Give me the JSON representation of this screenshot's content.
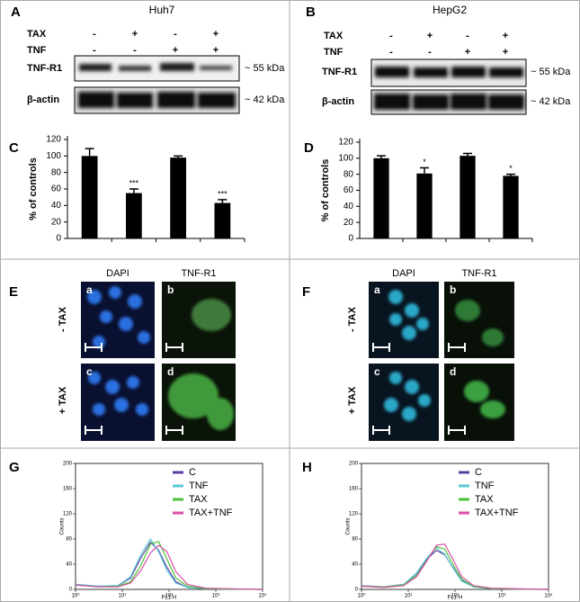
{
  "blots": [
    {
      "letter": "A",
      "title": "Huh7",
      "row_labels": [
        "TAX",
        "TNF"
      ],
      "rows": [
        [
          "-",
          "+",
          "-",
          "+"
        ],
        [
          "-",
          "-",
          "+",
          "+"
        ]
      ],
      "bands": [
        {
          "name": "TNF-R1",
          "size": "~ 55 kDa"
        },
        {
          "name": "β-actin",
          "size": "~ 42 kDa"
        }
      ]
    },
    {
      "letter": "B",
      "title": "HepG2",
      "row_labels": [
        "TAX",
        "TNF"
      ],
      "rows": [
        [
          "-",
          "+",
          "-",
          "+"
        ],
        [
          "-",
          "-",
          "+",
          "+"
        ]
      ],
      "bands": [
        {
          "name": "TNF-R1",
          "size": "~ 55 kDa"
        },
        {
          "name": "β-actin",
          "size": "~ 42 kDa"
        }
      ]
    }
  ],
  "microscopy": [
    {
      "letter": "E",
      "columns": [
        "DAPI",
        "TNF-R1"
      ],
      "rows": [
        "- TAX",
        "+ TAX"
      ],
      "tiles": [
        "a",
        "b",
        "c",
        "d"
      ]
    },
    {
      "letter": "F",
      "columns": [
        "DAPI",
        "TNF-R1"
      ],
      "rows": [
        "- TAX",
        "+ TAX"
      ],
      "tiles": [
        "a",
        "b",
        "c",
        "d"
      ]
    }
  ],
  "chart_data": [
    {
      "type": "bar",
      "letter": "C",
      "ylabel": "% of controls",
      "categories": [
        null,
        null,
        null,
        null
      ],
      "values": [
        100,
        55,
        98,
        43
      ],
      "errors": [
        9,
        5,
        2,
        4
      ],
      "significance": [
        null,
        "***",
        null,
        "***"
      ],
      "color": "#000000",
      "ylim": [
        0,
        120
      ],
      "yticks": [
        0,
        20,
        40,
        60,
        80,
        100,
        120
      ]
    },
    {
      "type": "bar",
      "letter": "D",
      "ylabel": "% of controls",
      "categories": [
        null,
        null,
        null,
        null
      ],
      "values": [
        100,
        81,
        103,
        78
      ],
      "errors": [
        3,
        7,
        3,
        2
      ],
      "significance": [
        null,
        "*",
        null,
        "*"
      ],
      "color": "#000000",
      "ylim": [
        0,
        120
      ],
      "yticks": [
        0,
        20,
        40,
        60,
        80,
        100,
        120
      ]
    },
    {
      "type": "line",
      "letter": "G",
      "ylabel": "Counts",
      "xlabel": "FL1-H",
      "log_x": true,
      "legend": "upper right",
      "x": [
        1,
        3,
        8,
        15,
        25,
        40,
        60,
        90,
        140,
        250,
        600,
        10000
      ],
      "series": [
        {
          "name": "C",
          "color": "#5b3fa0",
          "values": [
            8,
            5,
            6,
            18,
            50,
            75,
            62,
            35,
            12,
            3,
            1,
            0
          ]
        },
        {
          "name": "TNF",
          "color": "#5bc8d8",
          "values": [
            8,
            5,
            6,
            20,
            55,
            80,
            60,
            30,
            10,
            3,
            1,
            0
          ]
        },
        {
          "name": "TAX",
          "color": "#4cc23a",
          "values": [
            7,
            4,
            5,
            12,
            38,
            72,
            76,
            48,
            18,
            5,
            1,
            0
          ]
        },
        {
          "name": "TAX+TNF",
          "color": "#d94fa8",
          "values": [
            7,
            4,
            4,
            10,
            30,
            58,
            70,
            60,
            28,
            8,
            2,
            0
          ]
        }
      ],
      "xlim": [
        1,
        10000
      ],
      "xticks": [
        {
          "value": 1,
          "label": "10⁰"
        },
        {
          "value": 10,
          "label": "10¹"
        },
        {
          "value": 100,
          "label": "10²"
        },
        {
          "value": 1000,
          "label": "10³"
        },
        {
          "value": 10000,
          "label": "10⁴"
        }
      ],
      "ylim": [
        0,
        200
      ],
      "yticks": [
        0,
        40,
        80,
        120,
        160,
        200
      ]
    },
    {
      "type": "line",
      "letter": "H",
      "ylabel": "Counts",
      "xlabel": "FL1-H",
      "log_x": true,
      "legend": "upper right",
      "x": [
        1,
        3,
        8,
        15,
        25,
        40,
        60,
        90,
        140,
        250,
        600,
        10000
      ],
      "series": [
        {
          "name": "C",
          "color": "#5b3fa0",
          "values": [
            6,
            4,
            8,
            25,
            48,
            62,
            55,
            35,
            14,
            4,
            1,
            0
          ]
        },
        {
          "name": "TNF",
          "color": "#5bc8d8",
          "values": [
            6,
            4,
            8,
            26,
            50,
            66,
            56,
            34,
            13,
            4,
            1,
            0
          ]
        },
        {
          "name": "TAX",
          "color": "#4cc23a",
          "values": [
            5,
            4,
            7,
            22,
            46,
            68,
            64,
            40,
            16,
            5,
            1,
            0
          ]
        },
        {
          "name": "TAX+TNF",
          "color": "#d94fa8",
          "values": [
            5,
            3,
            6,
            20,
            45,
            70,
            72,
            48,
            20,
            6,
            2,
            0
          ]
        }
      ],
      "xlim": [
        1,
        10000
      ],
      "xticks": [
        {
          "value": 1,
          "label": "10⁰"
        },
        {
          "value": 10,
          "label": "10¹"
        },
        {
          "value": 100,
          "label": "10²"
        },
        {
          "value": 1000,
          "label": "10³"
        },
        {
          "value": 10000,
          "label": "10⁴"
        }
      ],
      "ylim": [
        0,
        200
      ],
      "yticks": [
        0,
        40,
        80,
        120,
        160,
        200
      ]
    }
  ]
}
